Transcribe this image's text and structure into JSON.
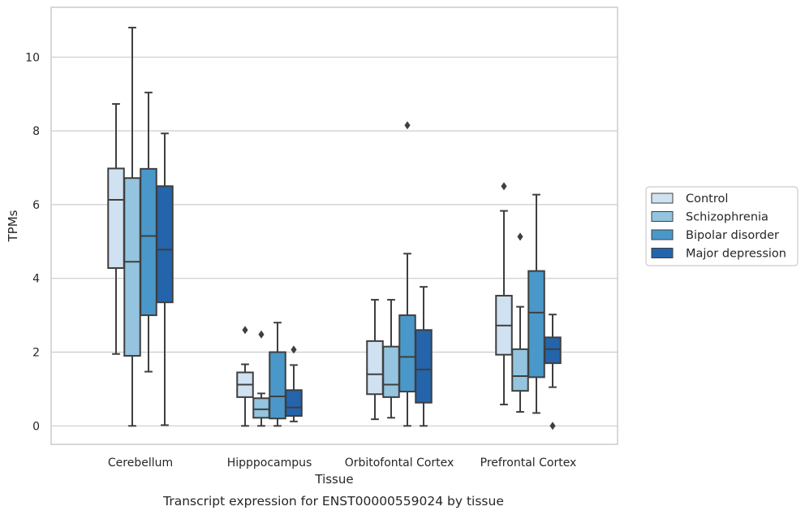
{
  "caption": "Transcript expression for ENST00000559024 by tissue",
  "chart_data": {
    "type": "box",
    "xlabel": "Tissue",
    "ylabel": "TPMs",
    "ylim": [
      -0.5,
      11.35
    ],
    "yticks": [
      0,
      2,
      4,
      6,
      8,
      10
    ],
    "grid": "horizontal",
    "legend_position": "right",
    "categories": [
      "Cerebellum",
      "Hipppocampus",
      "Orbitofontal Cortex",
      "Prefrontal Cortex"
    ],
    "series": [
      {
        "name": "Control",
        "color": "#d0e1f2",
        "boxes": [
          {
            "whisker_low": 1.95,
            "q1": 4.28,
            "median": 6.13,
            "q3": 6.98,
            "whisker_high": 8.73,
            "outliers": []
          },
          {
            "whisker_low": 0.0,
            "q1": 0.78,
            "median": 1.12,
            "q3": 1.45,
            "whisker_high": 1.67,
            "outliers": [
              2.6
            ]
          },
          {
            "whisker_low": 0.18,
            "q1": 0.86,
            "median": 1.4,
            "q3": 2.3,
            "whisker_high": 3.42,
            "outliers": []
          },
          {
            "whisker_low": 0.58,
            "q1": 1.93,
            "median": 2.72,
            "q3": 3.53,
            "whisker_high": 5.83,
            "outliers": [
              6.5
            ]
          }
        ]
      },
      {
        "name": "Schizophrenia",
        "color": "#94c4df",
        "boxes": [
          {
            "whisker_low": 0.0,
            "q1": 1.9,
            "median": 4.45,
            "q3": 6.72,
            "whisker_high": 10.8,
            "outliers": []
          },
          {
            "whisker_low": 0.0,
            "q1": 0.22,
            "median": 0.45,
            "q3": 0.75,
            "whisker_high": 0.88,
            "outliers": [
              2.48
            ]
          },
          {
            "whisker_low": 0.22,
            "q1": 0.78,
            "median": 1.12,
            "q3": 2.15,
            "whisker_high": 3.42,
            "outliers": []
          },
          {
            "whisker_low": 0.38,
            "q1": 0.95,
            "median": 1.35,
            "q3": 2.08,
            "whisker_high": 3.23,
            "outliers": [
              5.13
            ]
          }
        ]
      },
      {
        "name": "Bipolar disorder",
        "color": "#4a98c9",
        "boxes": [
          {
            "whisker_low": 1.47,
            "q1": 3.0,
            "median": 5.15,
            "q3": 6.97,
            "whisker_high": 9.04,
            "outliers": []
          },
          {
            "whisker_low": 0.0,
            "q1": 0.2,
            "median": 0.8,
            "q3": 2.0,
            "whisker_high": 2.8,
            "outliers": []
          },
          {
            "whisker_low": 0.0,
            "q1": 0.93,
            "median": 1.87,
            "q3": 3.0,
            "whisker_high": 4.67,
            "outliers": [
              8.15
            ]
          },
          {
            "whisker_low": 0.35,
            "q1": 1.32,
            "median": 3.07,
            "q3": 4.2,
            "whisker_high": 6.27,
            "outliers": []
          }
        ]
      },
      {
        "name": "Major depression",
        "color": "#2464ab",
        "boxes": [
          {
            "whisker_low": 0.02,
            "q1": 3.35,
            "median": 4.78,
            "q3": 6.5,
            "whisker_high": 7.93,
            "outliers": []
          },
          {
            "whisker_low": 0.12,
            "q1": 0.27,
            "median": 0.5,
            "q3": 0.97,
            "whisker_high": 1.65,
            "outliers": [
              2.07
            ]
          },
          {
            "whisker_low": 0.0,
            "q1": 0.63,
            "median": 1.53,
            "q3": 2.6,
            "whisker_high": 3.77,
            "outliers": []
          },
          {
            "whisker_low": 1.05,
            "q1": 1.7,
            "median": 2.08,
            "q3": 2.4,
            "whisker_high": 3.02,
            "outliers": [
              0.0
            ]
          }
        ]
      }
    ]
  },
  "colors": {
    "edge": "#3f3f3f",
    "grid": "#cccccc",
    "frame": "#cccccc",
    "legend_border": "#cccccc"
  }
}
